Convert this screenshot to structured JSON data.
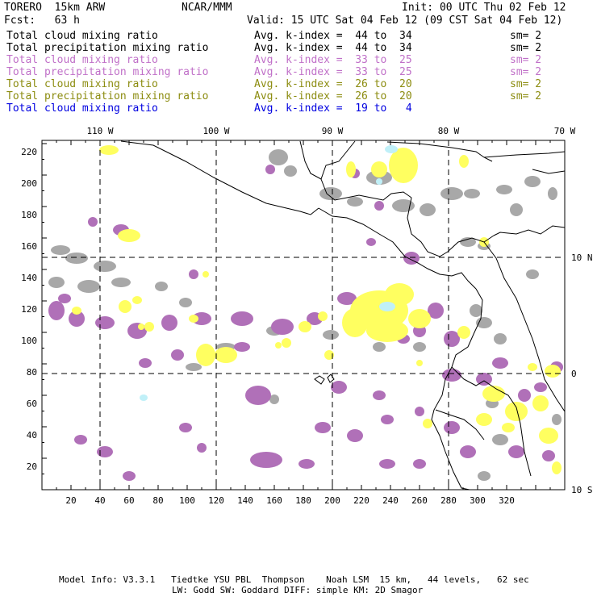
{
  "header": {
    "model": "TORERO  15km ARW",
    "center": "NCAR/MMM",
    "init": "Init: 00 UTC Thu 02 Feb 12",
    "fcst": "Fcst:   63 h",
    "valid": "Valid: 15 UTC Sat 04 Feb 12 (09 CST Sat 04 Feb 12)"
  },
  "legend": [
    {
      "field": "Total cloud mixing ratio",
      "index": "Avg. k-index =  44 to  34",
      "sm": "sm= 2",
      "color": "#000000"
    },
    {
      "field": "Total precipitation mixing ratio",
      "index": "Avg. k-index =  44 to  34",
      "sm": "sm= 2",
      "color": "#000000"
    },
    {
      "field": "Total cloud mixing ratio",
      "index": "Avg. k-index =  33 to  25",
      "sm": "sm= 2",
      "color": "#c070c8"
    },
    {
      "field": "Total precipitation mixing ratio",
      "index": "Avg. k-index =  33 to  25",
      "sm": "sm= 2",
      "color": "#c070c8"
    },
    {
      "field": "Total cloud mixing ratio",
      "index": "Avg. k-index =  26 to  20",
      "sm": "sm= 2",
      "color": "#8c8c10"
    },
    {
      "field": "Total precipitation mixing ratio",
      "index": "Avg. k-index =  26 to  20",
      "sm": "sm= 2",
      "color": "#8c8c10"
    },
    {
      "field": "Total cloud mixing ratio",
      "index": "Avg. k-index =  19 to   4",
      "sm": "",
      "color": "#0000e0"
    }
  ],
  "map": {
    "top_lon_labels": [
      "110 W",
      "100 W",
      "90 W",
      "80 W",
      "70 W"
    ],
    "right_lat_labels": [
      "10 N",
      "0",
      "10 S"
    ],
    "x_ticks": [
      "20",
      "40",
      "60",
      "80",
      "100",
      "120",
      "140",
      "160",
      "180",
      "200",
      "220",
      "240",
      "260",
      "280",
      "300",
      "320"
    ],
    "y_ticks": [
      "20",
      "40",
      "60",
      "80",
      "100",
      "120",
      "140",
      "160",
      "180",
      "200",
      "220"
    ],
    "colors": {
      "gray": "#a8a8a8",
      "purple": "#b070b8",
      "yellow": "#ffff60",
      "lightblue": "#c0f0f8"
    }
  },
  "footer": {
    "line1": "Model Info: V3.3.1   Tiedtke YSU PBL  Thompson    Noah LSM  15 km,   44 levels,   62 sec",
    "line2": "LW: Godd SW: Goddard DIFF: simple KM: 2D Smagor"
  }
}
